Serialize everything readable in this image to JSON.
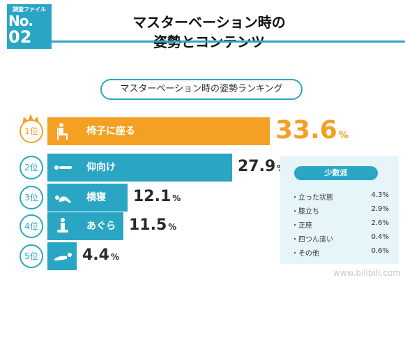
{
  "badge": {
    "label": "調査ファイル",
    "no": "No.",
    "num": "02"
  },
  "title": {
    "line1": "マスターベーション時の",
    "line2": "姿勢とコンテンツ"
  },
  "pill": {
    "text": "マスターベーション時の姿勢ランキング"
  },
  "colors": {
    "primary": "#2aa6c4",
    "accent": "#f4a024",
    "panel_bg": "#e6f5fa"
  },
  "chart_data": {
    "type": "bar",
    "categories": [
      "椅子に座る",
      "仰向け",
      "横寝",
      "あぐら",
      "うつ伏せ"
    ],
    "values": [
      33.6,
      27.9,
      12.1,
      11.5,
      4.4
    ],
    "rank_labels": [
      "1位",
      "2位",
      "3位",
      "4位",
      "5位"
    ],
    "unit": "%",
    "value_labels": [
      "33.6",
      "27.9",
      "12.1",
      "11.5",
      "4.4"
    ],
    "icons": [
      "chair-person-icon",
      "lying-on-back-icon",
      "lying-on-side-icon",
      "cross-legged-icon",
      "lying-face-down-icon"
    ]
  },
  "minority": {
    "title": "少数派",
    "items": [
      {
        "label": "・立った状態",
        "value": "4.3%"
      },
      {
        "label": "・膝立ち",
        "value": "2.9%"
      },
      {
        "label": "・正座",
        "value": "2.6%"
      },
      {
        "label": "・四つん這い",
        "value": "0.4%"
      },
      {
        "label": "・その他",
        "value": "0.6%"
      }
    ]
  },
  "watermark": "www.bilibili.com"
}
